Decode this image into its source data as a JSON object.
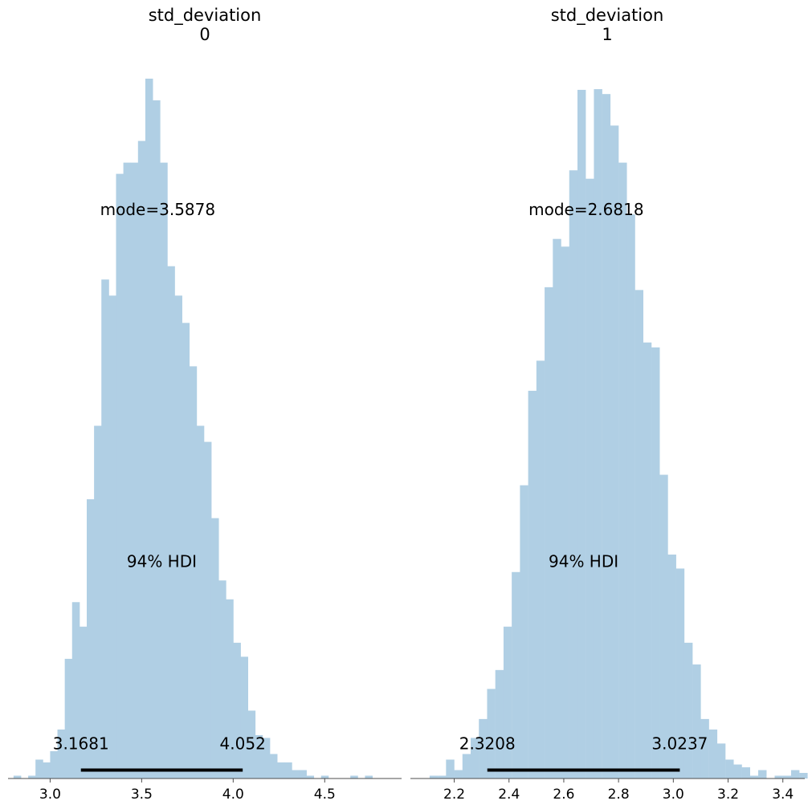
{
  "chart_data": [
    {
      "type": "bar",
      "title": "std_deviation",
      "subtitle": "0",
      "xlim": [
        2.77,
        4.92
      ],
      "ylim": [
        0,
        1
      ],
      "xticks": [
        3.0,
        3.5,
        4.0,
        4.5
      ],
      "xtick_labels": [
        "3.0",
        "3.5",
        "4.0",
        "4.5"
      ],
      "bin_width": 0.0402,
      "bins": [
        {
          "x0": 2.8,
          "value": 0.004
        },
        {
          "x0": 2.84,
          "value": 0.0
        },
        {
          "x0": 2.88,
          "value": 0.004
        },
        {
          "x0": 2.92,
          "value": 0.027
        },
        {
          "x0": 2.96,
          "value": 0.023
        },
        {
          "x0": 3.0,
          "value": 0.039
        },
        {
          "x0": 3.04,
          "value": 0.07
        },
        {
          "x0": 3.08,
          "value": 0.171
        },
        {
          "x0": 3.12,
          "value": 0.252
        },
        {
          "x0": 3.16,
          "value": 0.217
        },
        {
          "x0": 3.2,
          "value": 0.399
        },
        {
          "x0": 3.24,
          "value": 0.504
        },
        {
          "x0": 3.28,
          "value": 0.713
        },
        {
          "x0": 3.32,
          "value": 0.69
        },
        {
          "x0": 3.36,
          "value": 0.864
        },
        {
          "x0": 3.4,
          "value": 0.88
        },
        {
          "x0": 3.44,
          "value": 0.88
        },
        {
          "x0": 3.48,
          "value": 0.911
        },
        {
          "x0": 3.52,
          "value": 1.0
        },
        {
          "x0": 3.56,
          "value": 0.969
        },
        {
          "x0": 3.6,
          "value": 0.88
        },
        {
          "x0": 3.64,
          "value": 0.732
        },
        {
          "x0": 3.68,
          "value": 0.69
        },
        {
          "x0": 3.72,
          "value": 0.651
        },
        {
          "x0": 3.76,
          "value": 0.589
        },
        {
          "x0": 3.8,
          "value": 0.504
        },
        {
          "x0": 3.84,
          "value": 0.481
        },
        {
          "x0": 3.88,
          "value": 0.372
        },
        {
          "x0": 3.92,
          "value": 0.283
        },
        {
          "x0": 3.96,
          "value": 0.256
        },
        {
          "x0": 4.0,
          "value": 0.194
        },
        {
          "x0": 4.04,
          "value": 0.174
        },
        {
          "x0": 4.08,
          "value": 0.097
        },
        {
          "x0": 4.12,
          "value": 0.062
        },
        {
          "x0": 4.16,
          "value": 0.058
        },
        {
          "x0": 4.2,
          "value": 0.035
        },
        {
          "x0": 4.24,
          "value": 0.023
        },
        {
          "x0": 4.28,
          "value": 0.023
        },
        {
          "x0": 4.32,
          "value": 0.012
        },
        {
          "x0": 4.36,
          "value": 0.012
        },
        {
          "x0": 4.4,
          "value": 0.004
        },
        {
          "x0": 4.44,
          "value": 0.0
        },
        {
          "x0": 4.48,
          "value": 0.004
        },
        {
          "x0": 4.52,
          "value": 0.0
        },
        {
          "x0": 4.56,
          "value": 0.0
        },
        {
          "x0": 4.6,
          "value": 0.0
        },
        {
          "x0": 4.64,
          "value": 0.004
        },
        {
          "x0": 4.68,
          "value": 0.0
        },
        {
          "x0": 4.72,
          "value": 0.004
        }
      ],
      "mode_label": "mode=3.5878",
      "mode_label_x": 3.5878,
      "mode_label_y": 0.813,
      "hdi": {
        "label": "94% HDI",
        "low": 3.1681,
        "high": 4.052,
        "low_label": "3.1681",
        "high_label": "4.052",
        "label_y": 0.31,
        "bound_label_y": 0.05,
        "bar_y": 0.012
      },
      "color": "#b0cfe4",
      "hdi_color": "#000000"
    },
    {
      "type": "bar",
      "title": "std_deviation",
      "subtitle": "1",
      "xlim": [
        2.04,
        3.48
      ],
      "ylim": [
        0,
        1
      ],
      "xticks": [
        2.2,
        2.4,
        2.6,
        2.8,
        3.0,
        3.2,
        3.4
      ],
      "xtick_labels": [
        "2.2",
        "2.4",
        "2.6",
        "2.8",
        "3.0",
        "3.2",
        "3.4"
      ],
      "bin_width": 0.0294,
      "bins": [
        {
          "x0": 2.11,
          "value": 0.004
        },
        {
          "x0": 2.14,
          "value": 0.004
        },
        {
          "x0": 2.17,
          "value": 0.027
        },
        {
          "x0": 2.2,
          "value": 0.012
        },
        {
          "x0": 2.23,
          "value": 0.035
        },
        {
          "x0": 2.26,
          "value": 0.058
        },
        {
          "x0": 2.29,
          "value": 0.085
        },
        {
          "x0": 2.32,
          "value": 0.128
        },
        {
          "x0": 2.35,
          "value": 0.155
        },
        {
          "x0": 2.38,
          "value": 0.217
        },
        {
          "x0": 2.41,
          "value": 0.295
        },
        {
          "x0": 2.44,
          "value": 0.419
        },
        {
          "x0": 2.47,
          "value": 0.554
        },
        {
          "x0": 2.5,
          "value": 0.597
        },
        {
          "x0": 2.53,
          "value": 0.702
        },
        {
          "x0": 2.56,
          "value": 0.771
        },
        {
          "x0": 2.59,
          "value": 0.76
        },
        {
          "x0": 2.62,
          "value": 0.869
        },
        {
          "x0": 2.65,
          "value": 0.984
        },
        {
          "x0": 2.68,
          "value": 0.857
        },
        {
          "x0": 2.71,
          "value": 0.985
        },
        {
          "x0": 2.74,
          "value": 0.978
        },
        {
          "x0": 2.77,
          "value": 0.933
        },
        {
          "x0": 2.8,
          "value": 0.88
        },
        {
          "x0": 2.83,
          "value": 0.806
        },
        {
          "x0": 2.86,
          "value": 0.698
        },
        {
          "x0": 2.89,
          "value": 0.623
        },
        {
          "x0": 2.92,
          "value": 0.616
        },
        {
          "x0": 2.95,
          "value": 0.434
        },
        {
          "x0": 2.98,
          "value": 0.32
        },
        {
          "x0": 3.01,
          "value": 0.3
        },
        {
          "x0": 3.04,
          "value": 0.194
        },
        {
          "x0": 3.07,
          "value": 0.163
        },
        {
          "x0": 3.1,
          "value": 0.085
        },
        {
          "x0": 3.13,
          "value": 0.07
        },
        {
          "x0": 3.16,
          "value": 0.05
        },
        {
          "x0": 3.19,
          "value": 0.027
        },
        {
          "x0": 3.22,
          "value": 0.02
        },
        {
          "x0": 3.25,
          "value": 0.016
        },
        {
          "x0": 3.28,
          "value": 0.004
        },
        {
          "x0": 3.31,
          "value": 0.012
        },
        {
          "x0": 3.34,
          "value": 0.0
        },
        {
          "x0": 3.37,
          "value": 0.004
        },
        {
          "x0": 3.4,
          "value": 0.004
        },
        {
          "x0": 3.43,
          "value": 0.012
        },
        {
          "x0": 3.46,
          "value": 0.008
        }
      ],
      "mode_label": "mode=2.6818",
      "mode_label_x": 2.6818,
      "mode_label_y": 0.813,
      "hdi": {
        "label": "94% HDI",
        "low": 2.3208,
        "high": 3.0237,
        "low_label": "2.3208",
        "high_label": "3.0237",
        "label_y": 0.31,
        "bound_label_y": 0.05,
        "bar_y": 0.012
      },
      "color": "#b0cfe4",
      "hdi_color": "#000000"
    }
  ]
}
